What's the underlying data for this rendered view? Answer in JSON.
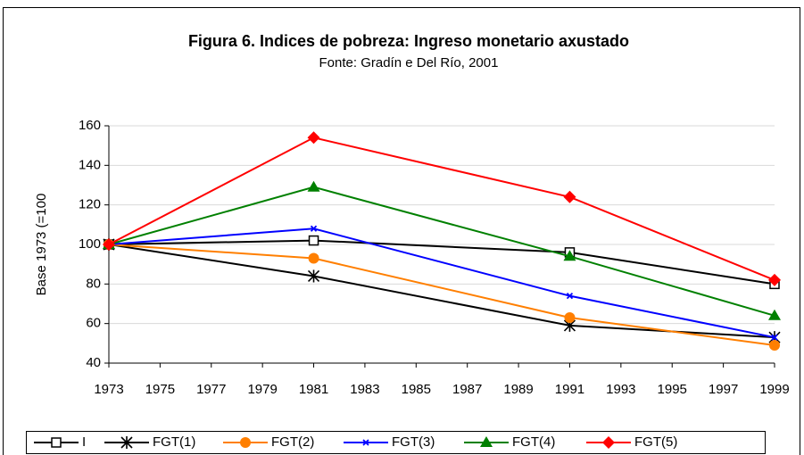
{
  "chart_data": {
    "type": "line",
    "title": "Figura 6. Indices de pobreza: Ingreso monetario axustado",
    "subtitle": "Fonte: Gradín e Del Río, 2001",
    "y_label": "Base 1973 (=100",
    "x": [
      1973,
      1981,
      1991,
      1999
    ],
    "xlim": [
      1973,
      1999
    ],
    "xticks": [
      1973,
      1975,
      1977,
      1979,
      1981,
      1983,
      1985,
      1987,
      1989,
      1991,
      1993,
      1995,
      1997,
      1999
    ],
    "ylim": [
      40,
      160
    ],
    "yticks": [
      40,
      60,
      80,
      100,
      120,
      140,
      160
    ],
    "grid": true,
    "legend": "bottom",
    "series": [
      {
        "name": "I",
        "color": "#000000",
        "marker": "square-open",
        "values": [
          100,
          102,
          96,
          80
        ]
      },
      {
        "name": "FGT(1)",
        "color": "#000000",
        "marker": "asterisk",
        "values": [
          100,
          84,
          59,
          53
        ]
      },
      {
        "name": "FGT(2)",
        "color": "#ff7f00",
        "marker": "circle",
        "values": [
          100,
          93,
          63,
          49
        ]
      },
      {
        "name": "FGT(3)",
        "color": "#0000ff",
        "marker": "small-x",
        "values": [
          100,
          108,
          74,
          53
        ]
      },
      {
        "name": "FGT(4)",
        "color": "#008000",
        "marker": "triangle",
        "values": [
          100,
          129,
          94,
          64
        ]
      },
      {
        "name": "FGT(5)",
        "color": "#ff0000",
        "marker": "diamond",
        "values": [
          100,
          154,
          124,
          82
        ]
      }
    ]
  }
}
